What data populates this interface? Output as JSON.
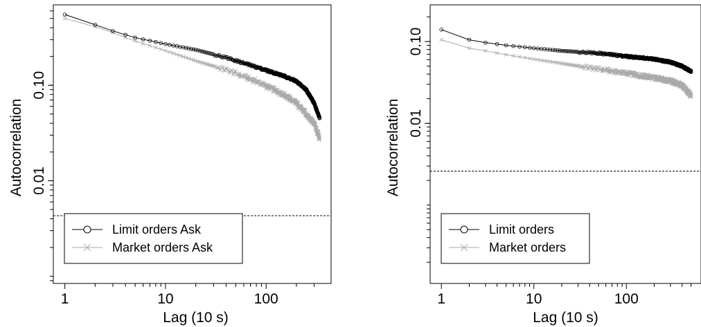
{
  "chart_data": [
    {
      "type": "line",
      "xlabel": "Lag (10 s)",
      "ylabel": "Autocorrelation",
      "x_scale": "log",
      "y_scale": "log",
      "xlim": [
        1,
        350
      ],
      "ylim": [
        0.00084,
        0.65
      ],
      "x_ticks": [
        {
          "value": 1,
          "label": "1"
        },
        {
          "value": 10,
          "label": "10"
        },
        {
          "value": 100,
          "label": "100"
        }
      ],
      "y_ticks": [
        {
          "value": 0.01,
          "label": "0.01"
        },
        {
          "value": 0.1,
          "label": "0.10"
        }
      ],
      "reference_line": {
        "y": 0.0043,
        "style": "dashed"
      },
      "legend": {
        "placement": "bottom-left"
      },
      "series": [
        {
          "name": "Limit orders Ask",
          "color": "#000000",
          "marker": "circle",
          "points": [
            [
              1,
              0.55
            ],
            [
              2,
              0.43
            ],
            [
              3,
              0.37
            ],
            [
              5,
              0.315
            ],
            [
              10,
              0.27
            ],
            [
              20,
              0.235
            ],
            [
              40,
              0.195
            ],
            [
              80,
              0.155
            ],
            [
              150,
              0.125
            ],
            [
              200,
              0.11
            ],
            [
              250,
              0.09
            ],
            [
              300,
              0.065
            ],
            [
              340,
              0.045
            ]
          ]
        },
        {
          "name": "Market orders Ask",
          "color": "#aaaaaa",
          "marker": "x",
          "points": [
            [
              1,
              0.5
            ],
            [
              2,
              0.41
            ],
            [
              3,
              0.355
            ],
            [
              5,
              0.29
            ],
            [
              10,
              0.23
            ],
            [
              20,
              0.18
            ],
            [
              40,
              0.145
            ],
            [
              80,
              0.11
            ],
            [
              150,
              0.08
            ],
            [
              200,
              0.065
            ],
            [
              250,
              0.05
            ],
            [
              300,
              0.04
            ],
            [
              340,
              0.028
            ]
          ]
        }
      ]
    },
    {
      "type": "line",
      "xlabel": "Lag (10 s)",
      "ylabel": "Autocorrelation",
      "x_scale": "log",
      "y_scale": "log",
      "xlim": [
        1,
        500
      ],
      "ylim": [
        0.00011,
        0.26
      ],
      "x_ticks": [
        {
          "value": 1,
          "label": "1"
        },
        {
          "value": 10,
          "label": "10"
        },
        {
          "value": 100,
          "label": "100"
        }
      ],
      "y_ticks": [
        {
          "value": 0.01,
          "label": "0.01"
        },
        {
          "value": 0.1,
          "label": "0.10"
        }
      ],
      "reference_line": {
        "y": 0.0026,
        "style": "dashed"
      },
      "legend": {
        "placement": "bottom-left"
      },
      "series": [
        {
          "name": "Limit orders",
          "color": "#000000",
          "marker": "circle",
          "points": [
            [
              1,
              0.14
            ],
            [
              2,
              0.105
            ],
            [
              3,
              0.097
            ],
            [
              5,
              0.09
            ],
            [
              10,
              0.083
            ],
            [
              20,
              0.077
            ],
            [
              50,
              0.072
            ],
            [
              100,
              0.066
            ],
            [
              200,
              0.061
            ],
            [
              300,
              0.056
            ],
            [
              400,
              0.05
            ],
            [
              500,
              0.043
            ]
          ]
        },
        {
          "name": "Market orders",
          "color": "#aaaaaa",
          "marker": "x",
          "points": [
            [
              1,
              0.105
            ],
            [
              2,
              0.083
            ],
            [
              3,
              0.077
            ],
            [
              5,
              0.069
            ],
            [
              10,
              0.061
            ],
            [
              20,
              0.054
            ],
            [
              50,
              0.046
            ],
            [
              100,
              0.041
            ],
            [
              200,
              0.036
            ],
            [
              300,
              0.033
            ],
            [
              400,
              0.029
            ],
            [
              500,
              0.022
            ]
          ]
        }
      ]
    }
  ]
}
